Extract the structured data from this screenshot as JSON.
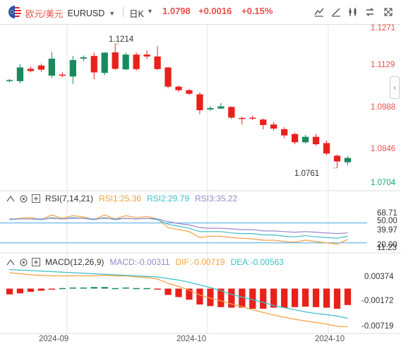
{
  "header": {
    "symbol_cn": "欧元/美元",
    "symbol_code": "EURUSD",
    "period": "日K",
    "last_price": "1.0798",
    "change": "+0.0016",
    "change_pct": "+0.15%",
    "toolbar_icons": [
      "chart-type-icon",
      "draw-line-icon",
      "indicator-icon",
      "compare-icon",
      "fullscreen-icon"
    ]
  },
  "price_axis": {
    "labels": [
      "1.1271",
      "1.1129",
      "1.0988",
      "1.0846",
      "1.0704"
    ]
  },
  "annotations": {
    "high": "1.1214",
    "low": "1.0761"
  },
  "rsi": {
    "title": "RSI(7,14,21)",
    "rsi1": "RSI1:25.36",
    "rsi2": "RSI2:29.79",
    "rsi3": "RSI3:35.22",
    "axis_labels": [
      "68.71",
      "50.00",
      "39.97",
      "20.00",
      "11.23"
    ]
  },
  "macd": {
    "title": "MACD(12,26,9)",
    "macd": "MACD:-0.00311",
    "dif": "DIF:-0.00719",
    "dea": "DEA:-0.00563",
    "axis_labels": [
      "0.00374",
      "-0.00172",
      "-0.00719"
    ]
  },
  "x_axis": {
    "labels": [
      "2024-09",
      "2024-10",
      "2024-10"
    ]
  },
  "colors": {
    "up": "#e8211b",
    "down": "#1a8a5e",
    "rsi1": "#f5a040",
    "rsi2": "#3cbfc8",
    "rsi3": "#9a86c8",
    "dif": "#f5a040",
    "dea": "#3cbfc8",
    "ref_line": "#4aa8e8"
  },
  "chart_data": [
    {
      "type": "candlestick",
      "title": "",
      "ylim": [
        1.0704,
        1.1271
      ],
      "candles": [
        {
          "o": 1.1078,
          "c": 1.1082,
          "h": 1.1086,
          "l": 1.1074
        },
        {
          "o": 1.1078,
          "c": 1.1128,
          "h": 1.114,
          "l": 1.107
        },
        {
          "o": 1.1123,
          "c": 1.1115,
          "h": 1.1132,
          "l": 1.111
        },
        {
          "o": 1.1135,
          "c": 1.112,
          "h": 1.1142,
          "l": 1.1112
        },
        {
          "o": 1.1098,
          "c": 1.116,
          "h": 1.1185,
          "l": 1.109
        },
        {
          "o": 1.1102,
          "c": 1.1098,
          "h": 1.111,
          "l": 1.1092
        },
        {
          "o": 1.1095,
          "c": 1.1155,
          "h": 1.117,
          "l": 1.1068
        },
        {
          "o": 1.116,
          "c": 1.1165,
          "h": 1.1172,
          "l": 1.115
        },
        {
          "o": 1.117,
          "c": 1.111,
          "h": 1.1182,
          "l": 1.1085
        },
        {
          "o": 1.1108,
          "c": 1.1182,
          "h": 1.1184,
          "l": 1.11
        },
        {
          "o": 1.1183,
          "c": 1.1123,
          "h": 1.1214,
          "l": 1.1118
        },
        {
          "o": 1.1121,
          "c": 1.1175,
          "h": 1.1182,
          "l": 1.1118
        },
        {
          "o": 1.1175,
          "c": 1.1122,
          "h": 1.1183,
          "l": 1.1116
        },
        {
          "o": 1.1175,
          "c": 1.1168,
          "h": 1.119,
          "l": 1.1158
        },
        {
          "o": 1.1168,
          "c": 1.1122,
          "h": 1.1206,
          "l": 1.1118
        },
        {
          "o": 1.1128,
          "c": 1.1058,
          "h": 1.113,
          "l": 1.1052
        },
        {
          "o": 1.1058,
          "c": 1.1045,
          "h": 1.1062,
          "l": 1.1038
        },
        {
          "o": 1.1045,
          "c": 1.1032,
          "h": 1.105,
          "l": 1.1028
        },
        {
          "o": 1.103,
          "c": 1.0972,
          "h": 1.1037,
          "l": 1.0958
        },
        {
          "o": 1.0975,
          "c": 1.098,
          "h": 1.0988,
          "l": 1.097
        },
        {
          "o": 1.0978,
          "c": 1.0986,
          "h": 1.0998,
          "l": 1.0976
        },
        {
          "o": 1.0984,
          "c": 1.0945,
          "h": 1.0986,
          "l": 1.094
        },
        {
          "o": 1.0944,
          "c": 1.0942,
          "h": 1.0948,
          "l": 1.092
        },
        {
          "o": 1.0945,
          "c": 1.0942,
          "h": 1.0952,
          "l": 1.0936
        },
        {
          "o": 1.0938,
          "c": 1.0918,
          "h": 1.0942,
          "l": 1.0902
        },
        {
          "o": 1.092,
          "c": 1.0905,
          "h": 1.093,
          "l": 1.0898
        },
        {
          "o": 1.0903,
          "c": 1.088,
          "h": 1.091,
          "l": 1.087
        },
        {
          "o": 1.0885,
          "c": 1.0855,
          "h": 1.089,
          "l": 1.0848
        },
        {
          "o": 1.0855,
          "c": 1.0875,
          "h": 1.0882,
          "l": 1.085
        },
        {
          "o": 1.0875,
          "c": 1.0848,
          "h": 1.0886,
          "l": 1.0842
        },
        {
          "o": 1.0852,
          "c": 1.0814,
          "h": 1.0862,
          "l": 1.0808
        },
        {
          "o": 1.0806,
          "c": 1.0785,
          "h": 1.081,
          "l": 1.0761
        },
        {
          "o": 1.0782,
          "c": 1.0798,
          "h": 1.0805,
          "l": 1.0772
        }
      ]
    },
    {
      "type": "line",
      "title": "RSI(7,14,21)",
      "ylim": [
        11.23,
        68.71
      ],
      "series": [
        {
          "name": "RSI1",
          "values": [
            55,
            57,
            58,
            55,
            62,
            57,
            61,
            59,
            55,
            62,
            56,
            61,
            58,
            60,
            56,
            43,
            40,
            37,
            28,
            30,
            30,
            28,
            27,
            26,
            24,
            24,
            22,
            21,
            24,
            22,
            20,
            18,
            25
          ]
        },
        {
          "name": "RSI2",
          "values": [
            55,
            56,
            56,
            55,
            58,
            56,
            58,
            57,
            55,
            58,
            55,
            57,
            56,
            57,
            55,
            48,
            45,
            42,
            37,
            37,
            37,
            35,
            34,
            34,
            32,
            32,
            30,
            29,
            31,
            29,
            28,
            27,
            30
          ]
        },
        {
          "name": "RSI3",
          "values": [
            56,
            56,
            56,
            56,
            57,
            56,
            57,
            57,
            56,
            57,
            56,
            57,
            56,
            57,
            56,
            52,
            49,
            47,
            43,
            42,
            42,
            41,
            40,
            40,
            38,
            38,
            37,
            36,
            37,
            36,
            35,
            34,
            35
          ]
        }
      ]
    },
    {
      "type": "bar",
      "title": "MACD(12,26,9)",
      "ylim": [
        -0.0082,
        0.0038
      ],
      "series": [
        {
          "name": "MACD",
          "values": [
            -0.0011,
            -0.0009,
            -0.0006,
            -0.0004,
            -0.0002,
            0.0001,
            0.0002,
            0.0002,
            0.0003,
            0.0003,
            0.0001,
            0.0002,
            0.0001,
            0.0001,
            -0.0001,
            -0.0012,
            -0.0016,
            -0.0021,
            -0.003,
            -0.0033,
            -0.0035,
            -0.0036,
            -0.0036,
            -0.0038,
            -0.0038,
            -0.0036,
            -0.0036,
            -0.0035,
            -0.0034,
            -0.0035,
            -0.0036,
            -0.0038,
            -0.0031
          ]
        }
      ],
      "lines": [
        {
          "name": "DIF",
          "values": [
            0.003,
            0.0028,
            0.0026,
            0.0025,
            0.0024,
            0.0024,
            0.0024,
            0.0024,
            0.0024,
            0.0025,
            0.0024,
            0.0024,
            0.0022,
            0.0021,
            0.0018,
            0.001,
            0.0004,
            -0.0003,
            -0.0012,
            -0.0018,
            -0.0023,
            -0.0029,
            -0.0034,
            -0.004,
            -0.0045,
            -0.005,
            -0.0054,
            -0.0058,
            -0.0061,
            -0.0064,
            -0.0067,
            -0.0071,
            -0.0072
          ]
        },
        {
          "name": "DEA",
          "values": [
            0.0036,
            0.0035,
            0.0034,
            0.0033,
            0.0032,
            0.0031,
            0.003,
            0.0029,
            0.0028,
            0.0027,
            0.0026,
            0.0025,
            0.0024,
            0.0023,
            0.0022,
            0.0019,
            0.0016,
            0.0012,
            0.0007,
            0.0002,
            -0.0004,
            -0.0011,
            -0.0016,
            -0.0021,
            -0.0026,
            -0.0032,
            -0.0036,
            -0.004,
            -0.0044,
            -0.0047,
            -0.0049,
            -0.0052,
            -0.0056
          ]
        }
      ]
    }
  ]
}
